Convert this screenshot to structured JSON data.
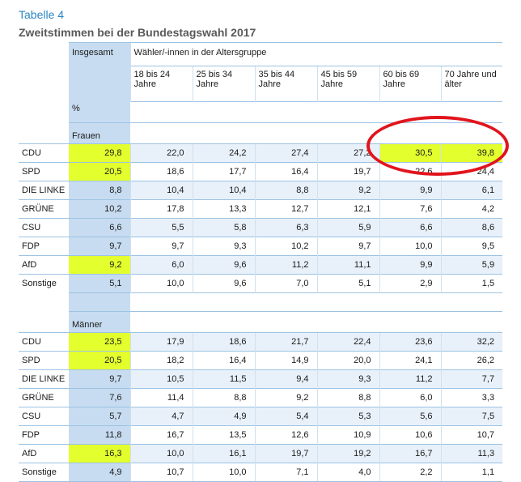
{
  "caption": "Tabelle 4",
  "title": "Zweitstimmen bei der Bundestagswahl 2017",
  "header": {
    "total": "Insgesamt",
    "group": "Wähler/-innen in der Altersgruppe",
    "age_groups": [
      "18 bis 24 Jahre",
      "25 bis 34 Jahre",
      "35 bis 44 Jahre",
      "45 bis 59 Jahre",
      "60 bis 69 Jahre",
      "70 Jahre und älter"
    ],
    "unit": "%"
  },
  "sections": [
    {
      "name": "Frauen",
      "rows": [
        {
          "party": "CDU",
          "values": [
            "29,8",
            "22,0",
            "24,2",
            "27,4",
            "27,2",
            "30,5",
            "39,8"
          ]
        },
        {
          "party": "SPD",
          "values": [
            "20,5",
            "18,6",
            "17,7",
            "16,4",
            "19,7",
            "22,6",
            "24,4"
          ]
        },
        {
          "party": "DIE LINKE",
          "values": [
            "8,8",
            "10,4",
            "10,4",
            "8,8",
            "9,2",
            "9,9",
            "6,1"
          ]
        },
        {
          "party": "GRÜNE",
          "values": [
            "10,2",
            "17,8",
            "13,3",
            "12,7",
            "12,1",
            "7,6",
            "4,2"
          ]
        },
        {
          "party": "CSU",
          "values": [
            "6,6",
            "5,5",
            "5,8",
            "6,3",
            "5,9",
            "6,6",
            "8,6"
          ]
        },
        {
          "party": "FDP",
          "values": [
            "9,7",
            "9,7",
            "9,3",
            "10,2",
            "9,7",
            "10,0",
            "9,5"
          ]
        },
        {
          "party": "AfD",
          "values": [
            "9,2",
            "6,0",
            "9,6",
            "11,2",
            "11,1",
            "9,9",
            "5,9"
          ]
        },
        {
          "party": "Sonstige",
          "values": [
            "5,1",
            "10,0",
            "9,6",
            "7,0",
            "5,1",
            "2,9",
            "1,5"
          ]
        }
      ]
    },
    {
      "name": "Männer",
      "rows": [
        {
          "party": "CDU",
          "values": [
            "23,5",
            "17,9",
            "18,6",
            "21,7",
            "22,4",
            "23,6",
            "32,2"
          ]
        },
        {
          "party": "SPD",
          "values": [
            "20,5",
            "18,2",
            "16,4",
            "14,9",
            "20,0",
            "24,1",
            "26,2"
          ]
        },
        {
          "party": "DIE LINKE",
          "values": [
            "9,7",
            "10,5",
            "11,5",
            "9,4",
            "9,3",
            "11,2",
            "7,7"
          ]
        },
        {
          "party": "GRÜNE",
          "values": [
            "7,6",
            "11,4",
            "8,8",
            "9,2",
            "8,8",
            "6,0",
            "3,3"
          ]
        },
        {
          "party": "CSU",
          "values": [
            "5,7",
            "4,7",
            "4,9",
            "5,4",
            "5,3",
            "5,6",
            "7,5"
          ]
        },
        {
          "party": "FDP",
          "values": [
            "11,8",
            "16,7",
            "13,5",
            "12,6",
            "10,9",
            "10,6",
            "10,7"
          ]
        },
        {
          "party": "AfD",
          "values": [
            "16,3",
            "10,0",
            "16,1",
            "19,7",
            "19,2",
            "16,7",
            "11,3"
          ]
        },
        {
          "party": "Sonstige",
          "values": [
            "4,9",
            "10,7",
            "10,0",
            "7,1",
            "4,0",
            "2,2",
            "1,1"
          ]
        }
      ]
    }
  ],
  "highlights": [
    [
      0,
      0,
      0
    ],
    [
      0,
      0,
      5
    ],
    [
      0,
      0,
      6
    ],
    [
      0,
      1,
      0
    ],
    [
      0,
      6,
      0
    ],
    [
      1,
      0,
      0
    ],
    [
      1,
      1,
      0
    ],
    [
      1,
      6,
      0
    ]
  ],
  "colors": {
    "caption": "#2b86c5",
    "highlight": "#e4ff2e",
    "total_column": "#c7dcf0",
    "row_shade": "#e8f1fa",
    "border": "#9dc3e3",
    "annotation_ellipse": "#e1141c"
  }
}
